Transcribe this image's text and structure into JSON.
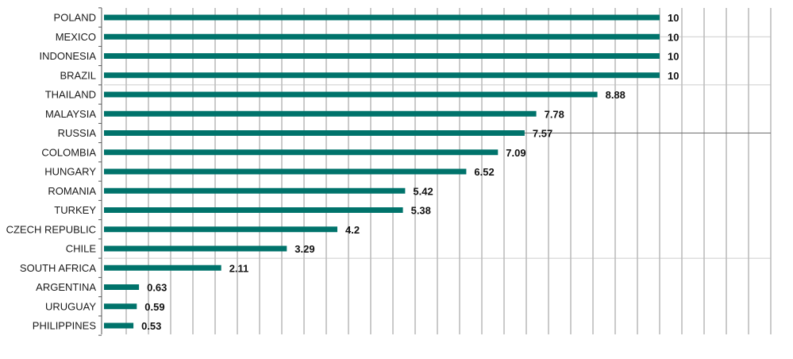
{
  "colors": {
    "bar": "#00736b",
    "grid": "#7a7a7a",
    "axis": "#555555",
    "text": "#1a1a1a"
  },
  "chart_data": {
    "type": "bar",
    "orientation": "horizontal",
    "title": "",
    "xlabel": "",
    "ylabel": "",
    "xlim": [
      0,
      12
    ],
    "grid": true,
    "legend": "none",
    "categories": [
      "POLAND",
      "MEXICO",
      "INDONESIA",
      "BRAZIL",
      "THAILAND",
      "MALAYSIA",
      "RUSSIA",
      "COLOMBIA",
      "HUNGARY",
      "ROMANIA",
      "TURKEY",
      "CZECH REPUBLIC",
      "CHILE",
      "SOUTH AFRICA",
      "ARGENTINA",
      "URUGUAY",
      "PHILIPPINES"
    ],
    "values": [
      10,
      10,
      10,
      10,
      8.88,
      7.78,
      7.57,
      7.09,
      6.52,
      5.42,
      5.38,
      4.2,
      3.29,
      2.11,
      0.63,
      0.59,
      0.53
    ],
    "value_labels": [
      "10",
      "10",
      "10",
      "10",
      "8.88",
      "7.78",
      "7.57",
      "7.09",
      "6.52",
      "5.42",
      "5.38",
      "4.2",
      "3.29",
      "2.11",
      "0.63",
      "0.59",
      "0.53"
    ]
  }
}
